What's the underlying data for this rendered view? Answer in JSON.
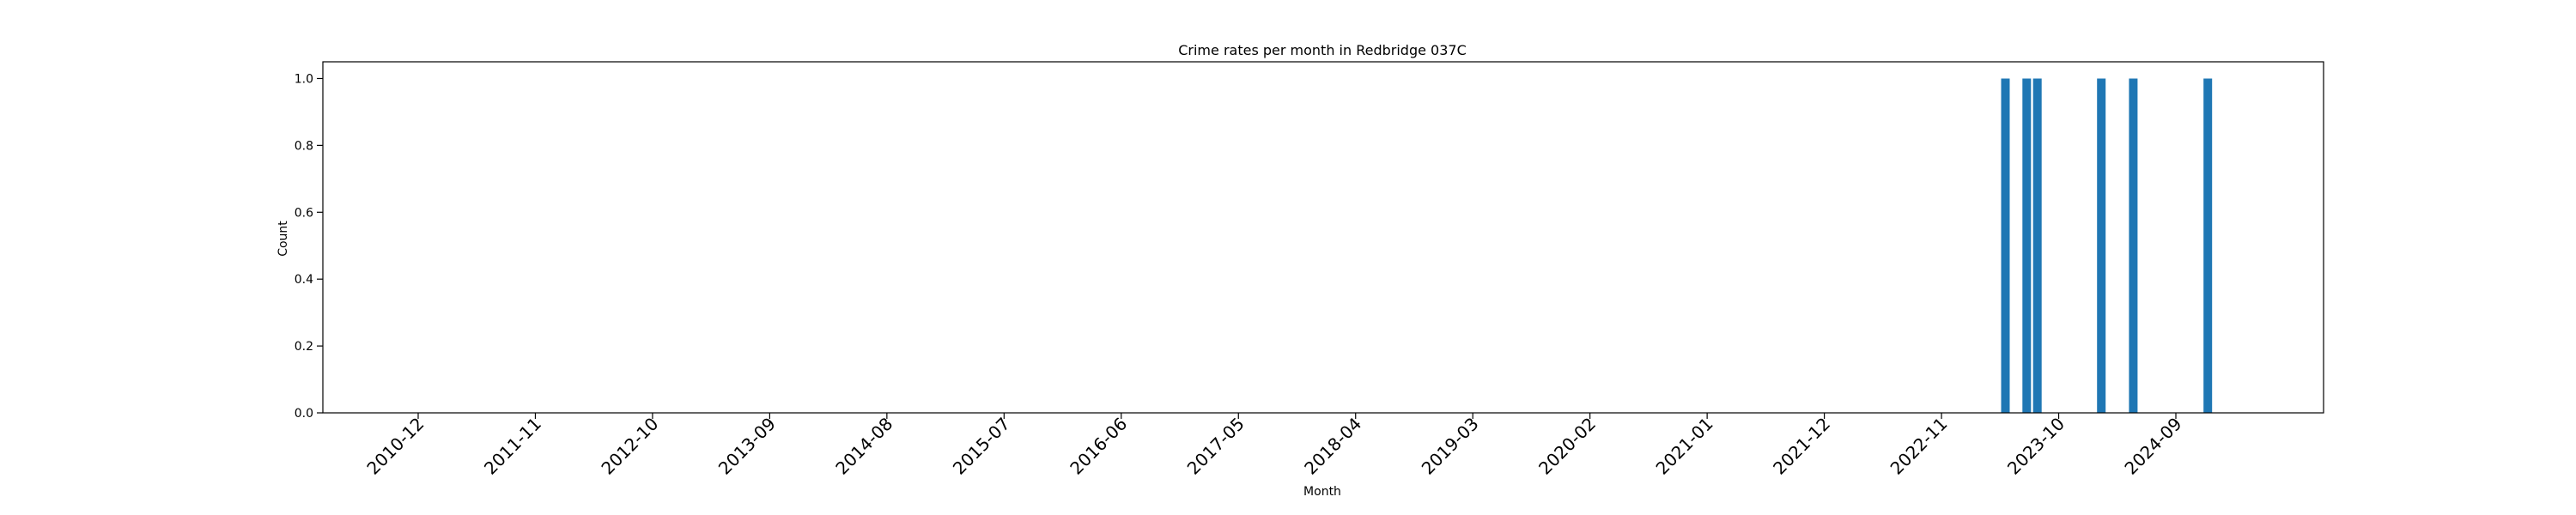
{
  "chart_data": {
    "type": "bar",
    "title": "Crime rates per month in Redbridge 037C",
    "xlabel": "Month",
    "ylabel": "Count",
    "ylim": [
      0,
      1.05
    ],
    "yticks": [
      "0.0",
      "0.2",
      "0.4",
      "0.6",
      "0.8",
      "1.0"
    ],
    "xtick_labels": [
      "2010-12",
      "2011-11",
      "2012-10",
      "2013-09",
      "2014-08",
      "2015-07",
      "2016-06",
      "2017-05",
      "2018-04",
      "2019-03",
      "2020-02",
      "2021-01",
      "2021-12",
      "2022-11",
      "2023-10",
      "2024-09"
    ],
    "categories": [
      "2023-05",
      "2023-07",
      "2023-08",
      "2024-02",
      "2024-05",
      "2024-12"
    ],
    "values": [
      1,
      1,
      1,
      1,
      1,
      1
    ],
    "grid": false,
    "bar_color": "#1f77b4"
  }
}
